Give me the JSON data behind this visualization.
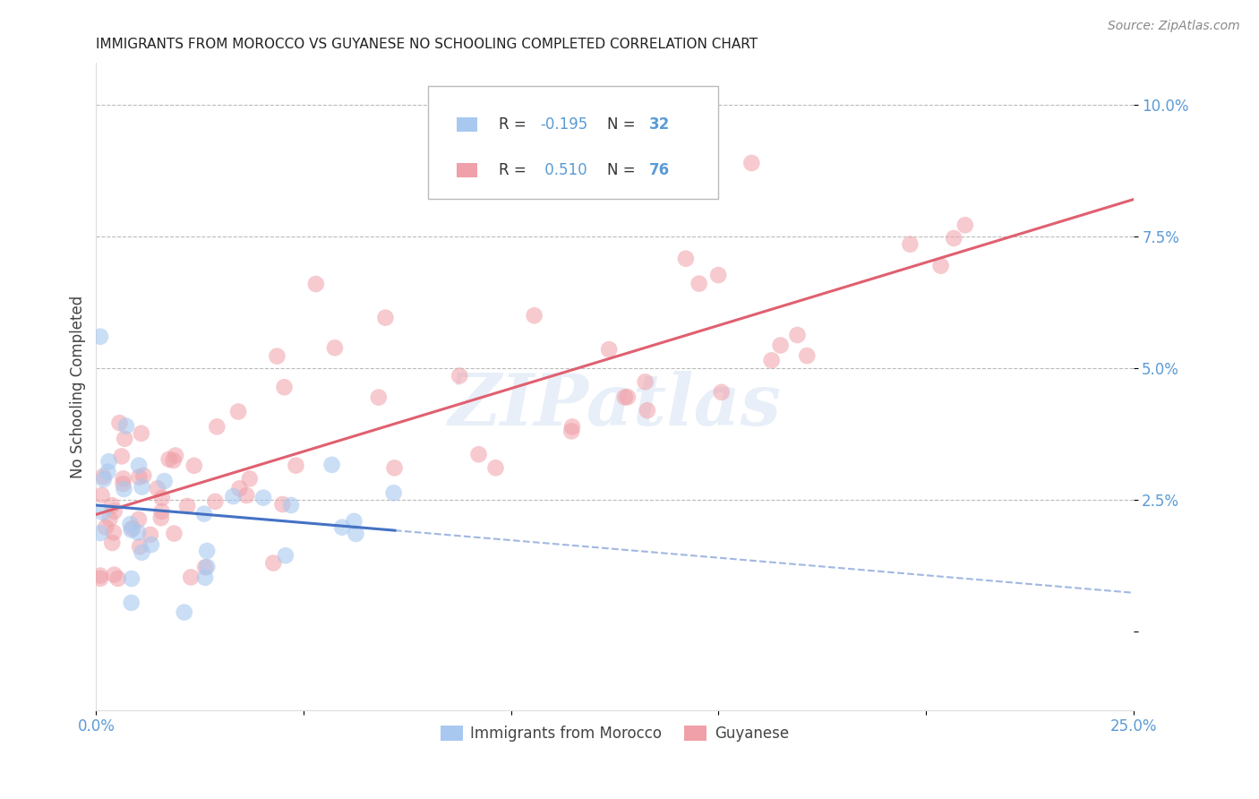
{
  "title": "IMMIGRANTS FROM MOROCCO VS GUYANESE NO SCHOOLING COMPLETED CORRELATION CHART",
  "source": "Source: ZipAtlas.com",
  "ylabel": "No Schooling Completed",
  "ytick_labels": [
    "",
    "2.5%",
    "5.0%",
    "7.5%",
    "10.0%"
  ],
  "ytick_values": [
    0.0,
    0.025,
    0.05,
    0.075,
    0.1
  ],
  "xlim": [
    0.0,
    0.25
  ],
  "ylim": [
    -0.015,
    0.108
  ],
  "color_blue": "#A8C8F0",
  "color_pink": "#F0A0A8",
  "color_trendline_blue": "#4472C4",
  "color_trendline_pink": "#E06070",
  "color_axis_labels": "#5B9BD5",
  "color_grid": "#bbbbbb",
  "watermark": "ZIPatlas",
  "title_fontsize": 11,
  "source_fontsize": 10,
  "tick_fontsize": 12
}
